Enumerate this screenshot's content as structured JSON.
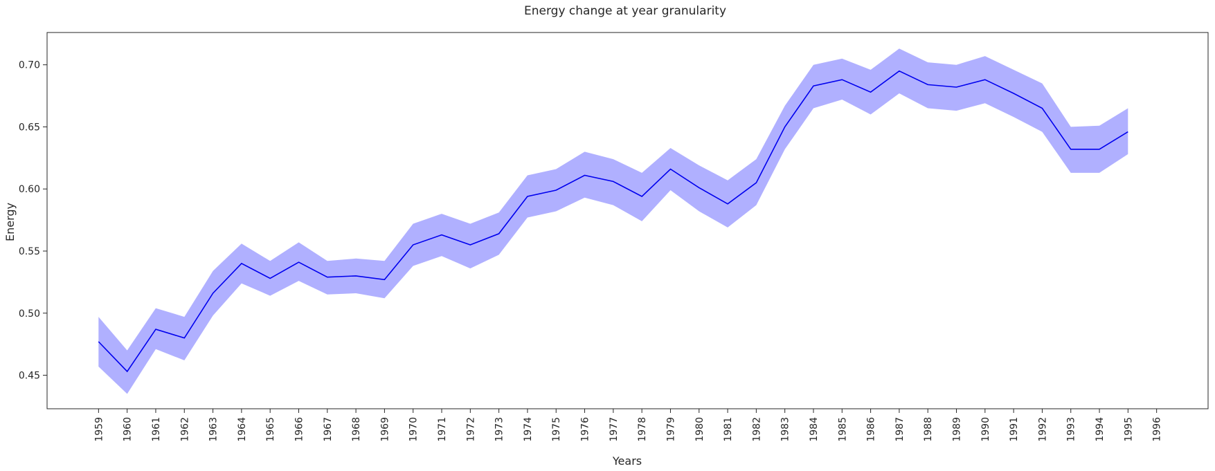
{
  "chart_data": {
    "type": "line",
    "title": "Energy change at year granularity",
    "xlabel": "Years",
    "ylabel": "Energy",
    "xticks": [
      "1959",
      "1960",
      "1961",
      "1962",
      "1963",
      "1964",
      "1965",
      "1966",
      "1967",
      "1968",
      "1969",
      "1970",
      "1971",
      "1972",
      "1973",
      "1974",
      "1975",
      "1976",
      "1977",
      "1978",
      "1979",
      "1980",
      "1981",
      "1982",
      "1983",
      "1984",
      "1985",
      "1986",
      "1987",
      "1988",
      "1989",
      "1990",
      "1991",
      "1992",
      "1993",
      "1994",
      "1995",
      "1996"
    ],
    "yticks": [
      "0.45",
      "0.50",
      "0.55",
      "0.60",
      "0.65",
      "0.70"
    ],
    "ylim": [
      0.423,
      0.726
    ],
    "xlim": [
      1957.2,
      1997.8
    ],
    "grid": false,
    "series": [
      {
        "x": [
          1959,
          1960,
          1961,
          1962,
          1963,
          1964,
          1965,
          1966,
          1967,
          1968,
          1969,
          1970,
          1971,
          1972,
          1973,
          1974,
          1975,
          1976,
          1977,
          1978,
          1979,
          1980,
          1981,
          1982,
          1983,
          1984,
          1985,
          1986,
          1987,
          1988,
          1989,
          1990,
          1991,
          1992,
          1993,
          1994,
          1995
        ],
        "y": [
          0.477,
          0.453,
          0.487,
          0.48,
          0.516,
          0.54,
          0.528,
          0.541,
          0.529,
          0.53,
          0.527,
          0.555,
          0.563,
          0.555,
          0.564,
          0.594,
          0.599,
          0.611,
          0.606,
          0.594,
          0.616,
          0.601,
          0.588,
          0.605,
          0.65,
          0.683,
          0.688,
          0.678,
          0.695,
          0.684,
          0.682,
          0.688,
          0.677,
          0.665,
          0.632,
          0.632,
          0.646
        ],
        "lower": [
          0.457,
          0.435,
          0.471,
          0.462,
          0.498,
          0.524,
          0.514,
          0.526,
          0.515,
          0.516,
          0.512,
          0.538,
          0.546,
          0.536,
          0.547,
          0.577,
          0.582,
          0.593,
          0.587,
          0.574,
          0.599,
          0.582,
          0.569,
          0.587,
          0.632,
          0.665,
          0.672,
          0.66,
          0.677,
          0.665,
          0.663,
          0.669,
          0.658,
          0.646,
          0.613,
          0.613,
          0.628
        ],
        "upper": [
          0.497,
          0.47,
          0.504,
          0.497,
          0.534,
          0.556,
          0.542,
          0.557,
          0.542,
          0.544,
          0.542,
          0.572,
          0.58,
          0.572,
          0.581,
          0.611,
          0.616,
          0.63,
          0.624,
          0.613,
          0.633,
          0.619,
          0.607,
          0.624,
          0.667,
          0.7,
          0.705,
          0.696,
          0.713,
          0.702,
          0.7,
          0.707,
          0.696,
          0.685,
          0.65,
          0.651,
          0.665
        ],
        "line_color": "#0000ee",
        "band_color": "#b0b0ff"
      }
    ]
  }
}
